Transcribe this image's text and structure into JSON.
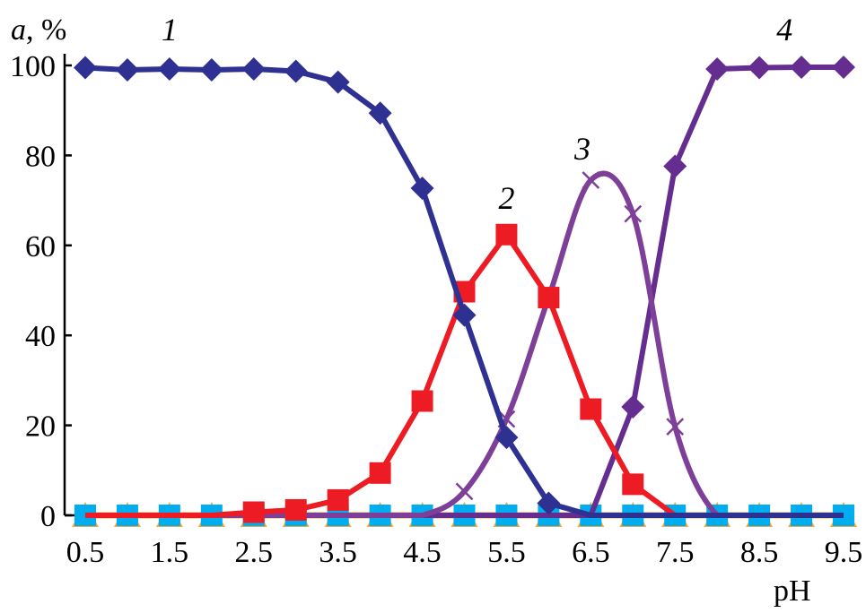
{
  "chart_data": {
    "type": "line",
    "ylabel": "a, %",
    "ylabel_var": "a",
    "ylabel_unit": ", %",
    "xlabel": "pH",
    "xlim": [
      0.5,
      9.5
    ],
    "ylim": [
      0,
      100
    ],
    "grid": false,
    "x_ticks": [
      "0.5",
      "1.5",
      "2.5",
      "3.5",
      "4.5",
      "5.5",
      "6.5",
      "7.5",
      "8.5",
      "9.5"
    ],
    "y_ticks": [
      "0",
      "20",
      "40",
      "60",
      "80",
      "100"
    ],
    "x": [
      0.5,
      1.0,
      1.5,
      2.0,
      2.5,
      3.0,
      3.5,
      4.0,
      4.5,
      5.0,
      5.5,
      6.0,
      6.5,
      7.0,
      7.5,
      8.0,
      8.5,
      9.0,
      9.5
    ],
    "series": [
      {
        "name": "1",
        "color": "#2E3192",
        "marker": "diamond",
        "values": [
          99.5,
          99,
          99.2,
          99,
          99.2,
          98.7,
          96.3,
          89.4,
          72.7,
          44.5,
          17.3,
          2.7,
          0,
          0,
          0,
          0,
          0,
          0,
          0
        ]
      },
      {
        "name": "2",
        "color": "#ED1C24",
        "marker": "square",
        "values": [
          0,
          0,
          0,
          0,
          0.7,
          1.2,
          3.4,
          9.4,
          25.4,
          49.7,
          62.4,
          48.4,
          23.6,
          6.9,
          0,
          0,
          0,
          0,
          0
        ]
      },
      {
        "name": "3",
        "color": "#7E3F98",
        "marker": "x",
        "smooth": true,
        "values": [
          0,
          0,
          0,
          0,
          0,
          0,
          0,
          0,
          0,
          5.3,
          21.4,
          48.4,
          74.5,
          67,
          19.7,
          0,
          0,
          0,
          0
        ]
      },
      {
        "name": "4",
        "color": "#662D91",
        "marker": "diamond",
        "values": [
          0,
          0,
          0,
          0,
          0,
          0,
          0,
          0,
          0,
          0,
          0,
          0,
          0,
          24.1,
          77.6,
          99.2,
          99.5,
          99.6,
          99.6
        ]
      },
      {
        "name": "",
        "color": "#00AEEF",
        "marker": "square",
        "values": [
          0,
          0,
          0,
          0,
          0,
          0,
          0,
          0,
          0,
          0,
          0,
          0,
          0,
          0,
          0,
          0,
          0,
          0,
          0
        ]
      },
      {
        "name": "",
        "color": "#F7A93B",
        "marker": "triangle",
        "values": [
          0,
          0,
          0,
          0,
          0,
          0,
          0,
          0,
          0,
          0,
          0,
          0,
          0,
          0,
          0,
          0,
          0,
          0,
          0
        ]
      }
    ],
    "annotations": [
      {
        "text": "1",
        "x": 1.5,
        "y": 108
      },
      {
        "text": "2",
        "x": 5.5,
        "y": 70.5
      },
      {
        "text": "3",
        "x": 6.4,
        "y": 81.5
      },
      {
        "text": "4",
        "x": 8.8,
        "y": 108
      }
    ]
  }
}
